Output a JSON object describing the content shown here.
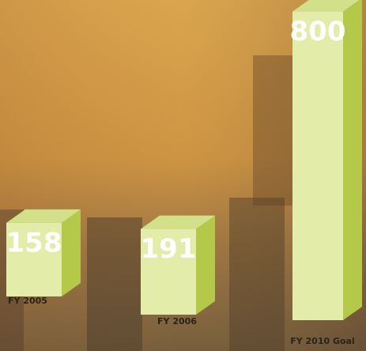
{
  "chart_data": {
    "type": "bar3d",
    "categories": [
      "FY 2005",
      "FY 2006",
      "FY 2010 Goal"
    ],
    "values": [
      158,
      191,
      800
    ],
    "color": "#e4eca9"
  }
}
